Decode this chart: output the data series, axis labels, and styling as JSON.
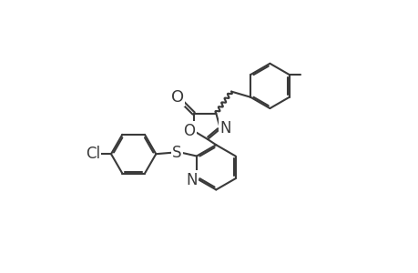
{
  "bg_color": "#ffffff",
  "line_color": "#3a3a3a",
  "line_width": 1.5,
  "font_size": 12,
  "figsize": [
    4.6,
    3.0
  ],
  "dpi": 100,
  "xlim": [
    0,
    460
  ],
  "ylim": [
    0,
    300
  ]
}
